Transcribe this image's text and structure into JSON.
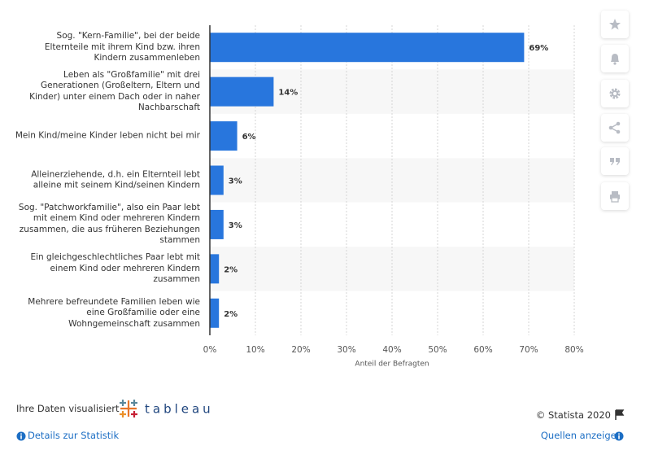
{
  "chart_data": {
    "type": "bar",
    "orientation": "horizontal",
    "categories": [
      "Sog. \"Kern-Familie\", bei der beide Elternteile mit ihrem Kind bzw. ihren Kindern zusammenleben",
      "Leben als \"Großfamilie\" mit drei Generationen (Großeltern, Eltern und Kinder) unter einem Dach oder in naher Nachbarschaft",
      "Mein Kind/meine Kinder leben nicht bei mir",
      "Alleinerziehende, d.h. ein Elternteil lebt alleine mit seinem Kind/seinen Kindern",
      "Sog. \"Patchworkfamilie\", also ein Paar lebt mit einem Kind oder mehreren Kindern zusammen, die aus früheren Beziehungen stammen",
      "Ein gleichgeschlechtliches Paar lebt mit einem Kind oder mehreren Kindern zusammen",
      "Mehrere befreundete Familien leben wie eine Großfamilie oder eine Wohngemeinschaft zusammen"
    ],
    "values": [
      69,
      14,
      6,
      3,
      3,
      2,
      2
    ],
    "value_labels": [
      "69%",
      "14%",
      "6%",
      "3%",
      "3%",
      "2%",
      "2%"
    ],
    "color": "#2876dd",
    "xlabel": "Anteil der Befragten",
    "xlim": [
      0,
      80
    ],
    "xticks": [
      {
        "value": 0,
        "label": "0%"
      },
      {
        "value": 10,
        "label": "10%"
      },
      {
        "value": 20,
        "label": "20%"
      },
      {
        "value": 30,
        "label": "30%"
      },
      {
        "value": 40,
        "label": "40%"
      },
      {
        "value": 50,
        "label": "50%"
      },
      {
        "value": 60,
        "label": "60%"
      },
      {
        "value": 70,
        "label": "70%"
      },
      {
        "value": 80,
        "label": "80%"
      }
    ],
    "grid": true
  },
  "footer": {
    "visualized": "Ihre Daten visualisiert",
    "logo": "tableau",
    "copyright": "© Statista 2020",
    "details": "Details zur Statistik",
    "sources": "Quellen anzeigen"
  }
}
